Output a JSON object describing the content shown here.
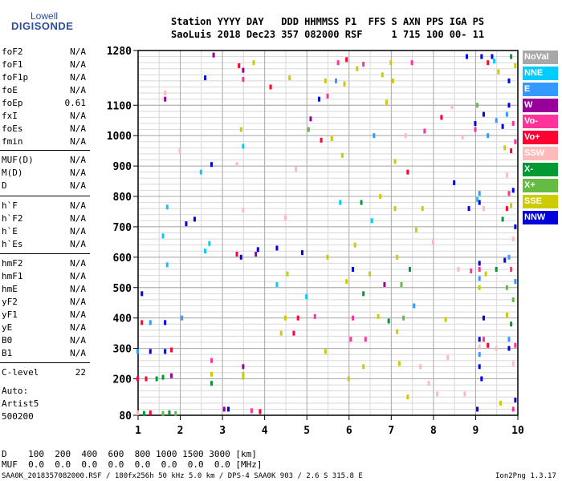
{
  "logo": {
    "line1": "Lowell",
    "line2": "DIGISONDE"
  },
  "header": {
    "row1": "Station YYYY DAY   DDD HHMMSS P1  FFS S AXN PPS IGA PS",
    "row2": "SaoLuis 2018 Dec23 357 082000 RSF     1 715 100 00- 11"
  },
  "params": {
    "group1": [
      {
        "name": "foF2",
        "value": "N/A"
      },
      {
        "name": "foF1",
        "value": "N/A"
      },
      {
        "name": "foF1p",
        "value": "N/A"
      },
      {
        "name": "foE",
        "value": "N/A"
      },
      {
        "name": "foEp",
        "value": "0.61"
      },
      {
        "name": "fxI",
        "value": "N/A"
      },
      {
        "name": "foEs",
        "value": "N/A"
      },
      {
        "name": "fmin",
        "value": "N/A"
      }
    ],
    "group2": [
      {
        "name": "MUF(D)",
        "value": "N/A"
      },
      {
        "name": "M(D)",
        "value": "N/A"
      },
      {
        "name": "D",
        "value": "N/A"
      }
    ],
    "group3": [
      {
        "name": "h`F",
        "value": "N/A"
      },
      {
        "name": "h`F2",
        "value": "N/A"
      },
      {
        "name": "h`E",
        "value": "N/A"
      },
      {
        "name": "h`Es",
        "value": "N/A"
      }
    ],
    "group4": [
      {
        "name": "hmF2",
        "value": "N/A"
      },
      {
        "name": "hmF1",
        "value": "N/A"
      },
      {
        "name": "hmE",
        "value": "N/A"
      },
      {
        "name": "yF2",
        "value": "N/A"
      },
      {
        "name": "yF1",
        "value": "N/A"
      },
      {
        "name": "yE",
        "value": "N/A"
      },
      {
        "name": "B0",
        "value": "N/A"
      },
      {
        "name": "B1",
        "value": "N/A"
      }
    ],
    "clevel": {
      "name": "C-level",
      "value": "22"
    },
    "auto": [
      "Auto:",
      "Artist5",
      "500200"
    ]
  },
  "legend": [
    {
      "label": "NoVal",
      "color": "#a8a8a8"
    },
    {
      "label": "NNE",
      "color": "#00ccff"
    },
    {
      "label": "E",
      "color": "#3399ff"
    },
    {
      "label": "W",
      "color": "#990099"
    },
    {
      "label": "Vo-",
      "color": "#ff3399"
    },
    {
      "label": "Vo+",
      "color": "#ff0033"
    },
    {
      "label": "SSW",
      "color": "#ffbbbb"
    },
    {
      "label": "X-",
      "color": "#009933"
    },
    {
      "label": "X+",
      "color": "#66bb44"
    },
    {
      "label": "SSE",
      "color": "#cccc00"
    },
    {
      "label": "NNW",
      "color": "#0000dd"
    }
  ],
  "chart_data": {
    "type": "scatter",
    "xlim": [
      1,
      10
    ],
    "ylim": [
      80,
      1280
    ],
    "x_ticks": [
      1,
      2,
      3,
      4,
      5,
      6,
      7,
      8,
      9,
      10
    ],
    "y_ticks": [
      80,
      200,
      300,
      400,
      500,
      600,
      700,
      800,
      900,
      1000,
      1100,
      1280
    ],
    "grid": true,
    "xlabel": "",
    "ylabel": "",
    "points": [
      {
        "x": 1.0,
        "y": 88,
        "c": 6
      },
      {
        "x": 1.15,
        "y": 86,
        "c": 7
      },
      {
        "x": 1.3,
        "y": 88,
        "c": 5
      },
      {
        "x": 1.6,
        "y": 86,
        "c": 8
      },
      {
        "x": 1.75,
        "y": 88,
        "c": 7
      },
      {
        "x": 1.9,
        "y": 86,
        "c": 8
      },
      {
        "x": 1.0,
        "y": 200,
        "c": 5
      },
      {
        "x": 1.2,
        "y": 200,
        "c": 5
      },
      {
        "x": 1.45,
        "y": 200,
        "c": 7
      },
      {
        "x": 1.6,
        "y": 205,
        "c": 7
      },
      {
        "x": 1.8,
        "y": 210,
        "c": 3
      },
      {
        "x": 1.0,
        "y": 290,
        "c": 2
      },
      {
        "x": 1.3,
        "y": 290,
        "c": 10
      },
      {
        "x": 1.65,
        "y": 290,
        "c": 10
      },
      {
        "x": 1.8,
        "y": 295,
        "c": 5
      },
      {
        "x": 1.1,
        "y": 385,
        "c": 5
      },
      {
        "x": 1.3,
        "y": 385,
        "c": 2
      },
      {
        "x": 1.65,
        "y": 385,
        "c": 10
      },
      {
        "x": 1.1,
        "y": 480,
        "c": 10
      },
      {
        "x": 1.7,
        "y": 575,
        "c": 1
      },
      {
        "x": 1.7,
        "y": 765,
        "c": 1
      },
      {
        "x": 1.6,
        "y": 670,
        "c": 1
      },
      {
        "x": 1.65,
        "y": 1120,
        "c": 3
      },
      {
        "x": 1.65,
        "y": 1140,
        "c": 6
      },
      {
        "x": 2.05,
        "y": 400,
        "c": 2
      },
      {
        "x": 2.0,
        "y": 950,
        "c": 6
      },
      {
        "x": 2.15,
        "y": 710,
        "c": 10
      },
      {
        "x": 2.35,
        "y": 725,
        "c": 10
      },
      {
        "x": 2.5,
        "y": 880,
        "c": 1
      },
      {
        "x": 2.6,
        "y": 1190,
        "c": 10
      },
      {
        "x": 2.6,
        "y": 620,
        "c": 1
      },
      {
        "x": 2.8,
        "y": 1265,
        "c": 3
      },
      {
        "x": 2.75,
        "y": 905,
        "c": 10
      },
      {
        "x": 2.7,
        "y": 645,
        "c": 1
      },
      {
        "x": 2.75,
        "y": 260,
        "c": 4
      },
      {
        "x": 2.75,
        "y": 215,
        "c": 9
      },
      {
        "x": 2.75,
        "y": 185,
        "c": 7
      },
      {
        "x": 3.05,
        "y": 100,
        "c": 3
      },
      {
        "x": 3.15,
        "y": 100,
        "c": 10
      },
      {
        "x": 3.4,
        "y": 1230,
        "c": 5
      },
      {
        "x": 3.5,
        "y": 1215,
        "c": 3
      },
      {
        "x": 3.5,
        "y": 1185,
        "c": 4
      },
      {
        "x": 3.45,
        "y": 1020,
        "c": 9
      },
      {
        "x": 3.5,
        "y": 965,
        "c": 1
      },
      {
        "x": 3.35,
        "y": 905,
        "c": 6
      },
      {
        "x": 3.5,
        "y": 755,
        "c": 6
      },
      {
        "x": 3.35,
        "y": 610,
        "c": 5
      },
      {
        "x": 3.45,
        "y": 600,
        "c": 10
      },
      {
        "x": 3.5,
        "y": 205,
        "c": 9
      },
      {
        "x": 3.5,
        "y": 215,
        "c": 9
      },
      {
        "x": 3.5,
        "y": 240,
        "c": 3
      },
      {
        "x": 3.7,
        "y": 95,
        "c": 4
      },
      {
        "x": 3.9,
        "y": 92,
        "c": 5
      },
      {
        "x": 3.8,
        "y": 610,
        "c": 3
      },
      {
        "x": 3.85,
        "y": 625,
        "c": 10
      },
      {
        "x": 3.75,
        "y": 1240,
        "c": 9
      },
      {
        "x": 4.15,
        "y": 1160,
        "c": 5
      },
      {
        "x": 4.3,
        "y": 510,
        "c": 1
      },
      {
        "x": 4.3,
        "y": 630,
        "c": 10
      },
      {
        "x": 4.4,
        "y": 350,
        "c": 9
      },
      {
        "x": 4.5,
        "y": 400,
        "c": 9
      },
      {
        "x": 4.55,
        "y": 545,
        "c": 9
      },
      {
        "x": 4.6,
        "y": 1190,
        "c": 9
      },
      {
        "x": 4.5,
        "y": 730,
        "c": 6
      },
      {
        "x": 4.7,
        "y": 350,
        "c": 5
      },
      {
        "x": 4.8,
        "y": 400,
        "c": 5
      },
      {
        "x": 4.9,
        "y": 615,
        "c": 10
      },
      {
        "x": 4.75,
        "y": 890,
        "c": 6
      },
      {
        "x": 5.0,
        "y": 470,
        "c": 1
      },
      {
        "x": 5.05,
        "y": 1020,
        "c": 8
      },
      {
        "x": 5.1,
        "y": 1055,
        "c": 3
      },
      {
        "x": 5.2,
        "y": 405,
        "c": 4
      },
      {
        "x": 5.3,
        "y": 1120,
        "c": 10
      },
      {
        "x": 5.35,
        "y": 985,
        "c": 5
      },
      {
        "x": 5.45,
        "y": 1180,
        "c": 9
      },
      {
        "x": 5.5,
        "y": 1130,
        "c": 4
      },
      {
        "x": 5.45,
        "y": 290,
        "c": 9
      },
      {
        "x": 5.5,
        "y": 600,
        "c": 9
      },
      {
        "x": 5.6,
        "y": 990,
        "c": 9
      },
      {
        "x": 5.7,
        "y": 1180,
        "c": 2
      },
      {
        "x": 5.75,
        "y": 1240,
        "c": 4
      },
      {
        "x": 5.8,
        "y": 780,
        "c": 1
      },
      {
        "x": 5.85,
        "y": 935,
        "c": 9
      },
      {
        "x": 5.9,
        "y": 1170,
        "c": 9
      },
      {
        "x": 5.95,
        "y": 1250,
        "c": 5
      },
      {
        "x": 5.95,
        "y": 520,
        "c": 9
      },
      {
        "x": 6.0,
        "y": 200,
        "c": 9
      },
      {
        "x": 6.05,
        "y": 330,
        "c": 4
      },
      {
        "x": 6.1,
        "y": 400,
        "c": 4
      },
      {
        "x": 6.1,
        "y": 560,
        "c": 10
      },
      {
        "x": 6.15,
        "y": 640,
        "c": 9
      },
      {
        "x": 6.2,
        "y": 1220,
        "c": 9
      },
      {
        "x": 6.3,
        "y": 780,
        "c": 7
      },
      {
        "x": 6.35,
        "y": 1235,
        "c": 4
      },
      {
        "x": 6.35,
        "y": 480,
        "c": 7
      },
      {
        "x": 6.35,
        "y": 240,
        "c": 9
      },
      {
        "x": 6.4,
        "y": 330,
        "c": 4
      },
      {
        "x": 6.5,
        "y": 545,
        "c": 9
      },
      {
        "x": 6.55,
        "y": 720,
        "c": 1
      },
      {
        "x": 6.6,
        "y": 1000,
        "c": 2
      },
      {
        "x": 6.7,
        "y": 405,
        "c": 9
      },
      {
        "x": 6.75,
        "y": 800,
        "c": 9
      },
      {
        "x": 6.8,
        "y": 1200,
        "c": 9
      },
      {
        "x": 6.85,
        "y": 510,
        "c": 3
      },
      {
        "x": 6.9,
        "y": 1110,
        "c": 9
      },
      {
        "x": 6.95,
        "y": 390,
        "c": 7
      },
      {
        "x": 7.0,
        "y": 1240,
        "c": 9
      },
      {
        "x": 7.05,
        "y": 1180,
        "c": 9
      },
      {
        "x": 7.1,
        "y": 915,
        "c": 9
      },
      {
        "x": 7.1,
        "y": 760,
        "c": 9
      },
      {
        "x": 7.15,
        "y": 600,
        "c": 9
      },
      {
        "x": 7.15,
        "y": 355,
        "c": 9
      },
      {
        "x": 7.2,
        "y": 250,
        "c": 9
      },
      {
        "x": 7.25,
        "y": 510,
        "c": 8
      },
      {
        "x": 7.3,
        "y": 400,
        "c": 8
      },
      {
        "x": 7.35,
        "y": 1000,
        "c": 6
      },
      {
        "x": 7.4,
        "y": 880,
        "c": 5
      },
      {
        "x": 7.4,
        "y": 140,
        "c": 9
      },
      {
        "x": 7.45,
        "y": 560,
        "c": 7
      },
      {
        "x": 7.5,
        "y": 1240,
        "c": 4
      },
      {
        "x": 7.55,
        "y": 440,
        "c": 2
      },
      {
        "x": 7.6,
        "y": 690,
        "c": 9
      },
      {
        "x": 7.7,
        "y": 240,
        "c": 6
      },
      {
        "x": 7.75,
        "y": 760,
        "c": 9
      },
      {
        "x": 7.8,
        "y": 1015,
        "c": 4
      },
      {
        "x": 7.9,
        "y": 185,
        "c": 6
      },
      {
        "x": 8.0,
        "y": 650,
        "c": 6
      },
      {
        "x": 8.1,
        "y": 150,
        "c": 6
      },
      {
        "x": 8.2,
        "y": 1060,
        "c": 5
      },
      {
        "x": 8.3,
        "y": 395,
        "c": 9
      },
      {
        "x": 8.35,
        "y": 270,
        "c": 6
      },
      {
        "x": 8.45,
        "y": 1095,
        "c": 6
      },
      {
        "x": 8.5,
        "y": 845,
        "c": 10
      },
      {
        "x": 8.6,
        "y": 560,
        "c": 6
      },
      {
        "x": 8.7,
        "y": 995,
        "c": 6
      },
      {
        "x": 8.75,
        "y": 150,
        "c": 6
      },
      {
        "x": 8.8,
        "y": 1260,
        "c": 10
      },
      {
        "x": 8.85,
        "y": 760,
        "c": 10
      },
      {
        "x": 8.9,
        "y": 555,
        "c": 4
      },
      {
        "x": 9.0,
        "y": 1040,
        "c": 10
      },
      {
        "x": 9.0,
        "y": 1020,
        "c": 4
      },
      {
        "x": 9.05,
        "y": 1100,
        "c": 8
      },
      {
        "x": 9.05,
        "y": 790,
        "c": 1
      },
      {
        "x": 9.1,
        "y": 780,
        "c": 10
      },
      {
        "x": 9.1,
        "y": 810,
        "c": 2
      },
      {
        "x": 9.1,
        "y": 580,
        "c": 10
      },
      {
        "x": 9.1,
        "y": 560,
        "c": 4
      },
      {
        "x": 9.1,
        "y": 530,
        "c": 2
      },
      {
        "x": 9.1,
        "y": 500,
        "c": 9
      },
      {
        "x": 9.1,
        "y": 330,
        "c": 10
      },
      {
        "x": 9.1,
        "y": 305,
        "c": 6
      },
      {
        "x": 9.1,
        "y": 280,
        "c": 2
      },
      {
        "x": 9.1,
        "y": 240,
        "c": 10
      },
      {
        "x": 9.15,
        "y": 200,
        "c": 10
      },
      {
        "x": 9.05,
        "y": 100,
        "c": 10
      },
      {
        "x": 9.15,
        "y": 1260,
        "c": 10
      },
      {
        "x": 9.2,
        "y": 1070,
        "c": 10
      },
      {
        "x": 9.2,
        "y": 760,
        "c": 6
      },
      {
        "x": 9.2,
        "y": 400,
        "c": 10
      },
      {
        "x": 9.2,
        "y": 330,
        "c": 4
      },
      {
        "x": 9.25,
        "y": 545,
        "c": 9
      },
      {
        "x": 9.3,
        "y": 1000,
        "c": 2
      },
      {
        "x": 9.3,
        "y": 310,
        "c": 5
      },
      {
        "x": 9.3,
        "y": 1240,
        "c": 5
      },
      {
        "x": 9.4,
        "y": 1260,
        "c": 10
      },
      {
        "x": 9.45,
        "y": 1245,
        "c": 1
      },
      {
        "x": 9.5,
        "y": 1050,
        "c": 2
      },
      {
        "x": 9.5,
        "y": 560,
        "c": 7
      },
      {
        "x": 9.5,
        "y": 300,
        "c": 6
      },
      {
        "x": 9.55,
        "y": 1210,
        "c": 9
      },
      {
        "x": 9.6,
        "y": 120,
        "c": 9
      },
      {
        "x": 9.65,
        "y": 1030,
        "c": 10
      },
      {
        "x": 9.65,
        "y": 725,
        "c": 7
      },
      {
        "x": 9.7,
        "y": 960,
        "c": 9
      },
      {
        "x": 9.7,
        "y": 590,
        "c": 10
      },
      {
        "x": 9.75,
        "y": 1070,
        "c": 2
      },
      {
        "x": 9.75,
        "y": 870,
        "c": 6
      },
      {
        "x": 9.75,
        "y": 760,
        "c": 5
      },
      {
        "x": 9.75,
        "y": 500,
        "c": 8
      },
      {
        "x": 9.75,
        "y": 410,
        "c": 9
      },
      {
        "x": 9.8,
        "y": 1100,
        "c": 10
      },
      {
        "x": 9.8,
        "y": 810,
        "c": 4
      },
      {
        "x": 9.8,
        "y": 600,
        "c": 2
      },
      {
        "x": 9.8,
        "y": 300,
        "c": 10
      },
      {
        "x": 9.8,
        "y": 330,
        "c": 2
      },
      {
        "x": 9.8,
        "y": 1180,
        "c": 10
      },
      {
        "x": 9.85,
        "y": 950,
        "c": 5
      },
      {
        "x": 9.85,
        "y": 770,
        "c": 9
      },
      {
        "x": 9.85,
        "y": 560,
        "c": 4
      },
      {
        "x": 9.85,
        "y": 380,
        "c": 7
      },
      {
        "x": 9.85,
        "y": 1260,
        "c": 7
      },
      {
        "x": 9.9,
        "y": 1040,
        "c": 4
      },
      {
        "x": 9.9,
        "y": 820,
        "c": 10
      },
      {
        "x": 9.9,
        "y": 660,
        "c": 6
      },
      {
        "x": 9.9,
        "y": 460,
        "c": 8
      },
      {
        "x": 9.9,
        "y": 250,
        "c": 6
      },
      {
        "x": 9.9,
        "y": 100,
        "c": 4
      },
      {
        "x": 9.95,
        "y": 1230,
        "c": 9
      },
      {
        "x": 9.95,
        "y": 980,
        "c": 4
      },
      {
        "x": 9.95,
        "y": 700,
        "c": 10
      },
      {
        "x": 9.95,
        "y": 520,
        "c": 2
      },
      {
        "x": 9.95,
        "y": 310,
        "c": 4
      },
      {
        "x": 9.95,
        "y": 130,
        "c": 10
      }
    ]
  },
  "footer": {
    "d_row": "D    100  200  400  600  800 1000 1500 3000 [km]",
    "muf_row": "MUF  0.0  0.0  0.0  0.0  0.0  0.0  0.0  0.0 [MHz]",
    "info": "SAA0K_2018357082000.RSF / 180fx256h 50 kHz 5.0 km / DPS-4 SAA0K 903 / 2.6 S 315.8 E",
    "version": "Ion2Png 1.3.17"
  }
}
